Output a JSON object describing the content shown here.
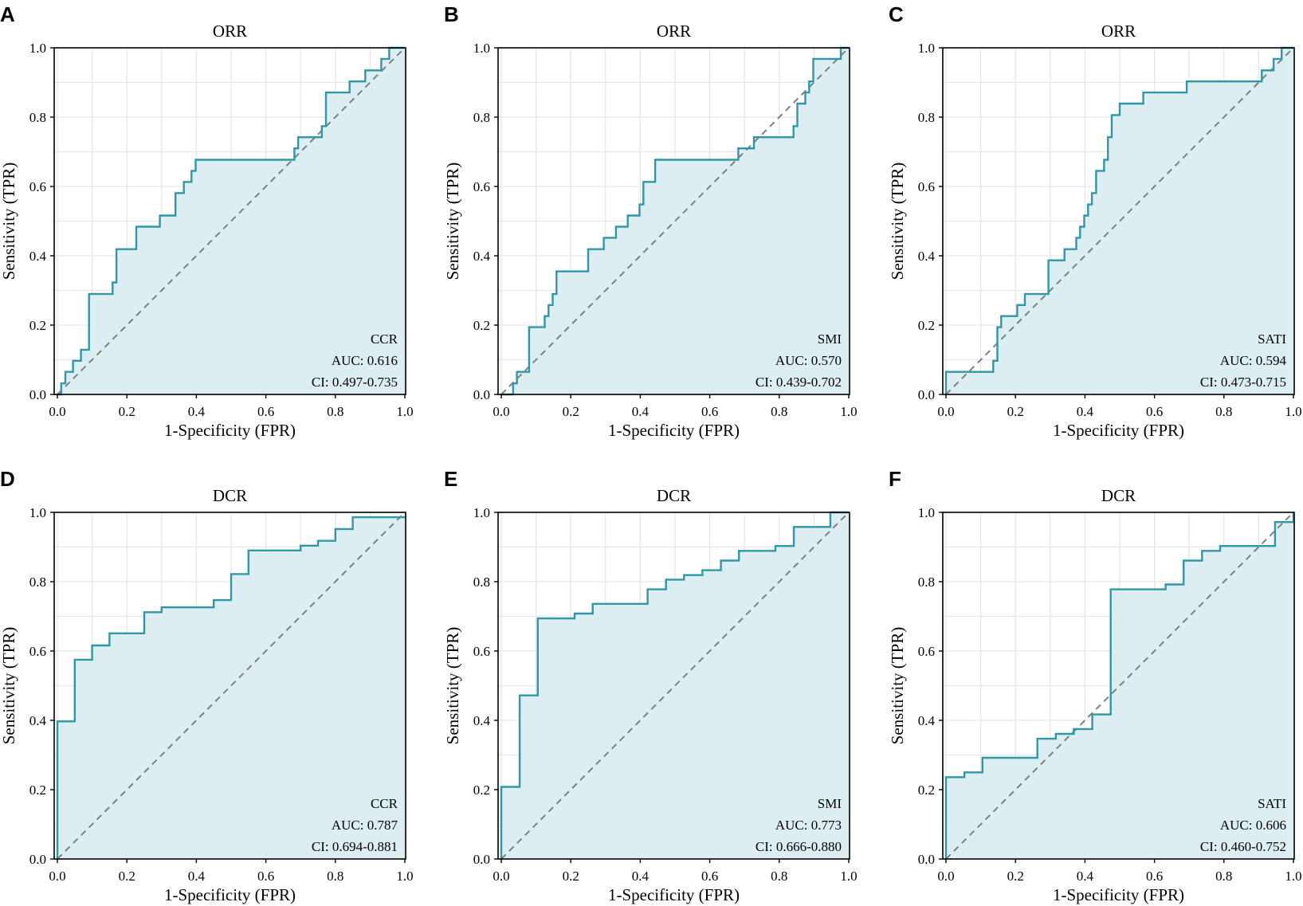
{
  "figure": {
    "colors": {
      "line": "#2E98A8",
      "fill": "#DCEEF1",
      "diagonal": "#7F7F7F"
    }
  },
  "chart_data": [
    {
      "type": "line",
      "panel": "A",
      "title": "ORR",
      "xlabel": "1-Specificity (FPR)",
      "ylabel": "Sensitivity (TPR)",
      "xlim": [
        0,
        1
      ],
      "ylim": [
        0,
        1
      ],
      "xticks": [
        "0.0",
        "0.2",
        "0.4",
        "0.6",
        "0.8",
        "1.0"
      ],
      "yticks": [
        "0.0",
        "0.2",
        "0.4",
        "0.6",
        "0.8",
        "1.0"
      ],
      "series_name": "CCR",
      "auc": "AUC: 0.616",
      "ci": "CI: 0.497-0.735",
      "x": [
        0,
        0.011,
        0.011,
        0.023,
        0.023,
        0.045,
        0.045,
        0.068,
        0.068,
        0.091,
        0.091,
        0.159,
        0.159,
        0.17,
        0.17,
        0.227,
        0.227,
        0.295,
        0.295,
        0.34,
        0.34,
        0.364,
        0.364,
        0.386,
        0.386,
        0.398,
        0.398,
        0.682,
        0.682,
        0.693,
        0.693,
        0.761,
        0.761,
        0.773,
        0.773,
        0.841,
        0.841,
        0.886,
        0.886,
        0.932,
        0.932,
        0.955,
        0.955,
        1.0,
        1.0
      ],
      "y": [
        0,
        0,
        0.032,
        0.032,
        0.065,
        0.065,
        0.097,
        0.097,
        0.129,
        0.129,
        0.29,
        0.29,
        0.323,
        0.323,
        0.419,
        0.419,
        0.484,
        0.484,
        0.516,
        0.516,
        0.581,
        0.581,
        0.613,
        0.613,
        0.645,
        0.645,
        0.677,
        0.677,
        0.71,
        0.71,
        0.742,
        0.742,
        0.774,
        0.774,
        0.871,
        0.871,
        0.903,
        0.903,
        0.935,
        0.935,
        0.968,
        0.968,
        1.0,
        1.0,
        1.0
      ]
    },
    {
      "type": "line",
      "panel": "B",
      "title": "ORR",
      "xlabel": "1-Specificity (FPR)",
      "ylabel": "Sensitivity (TPR)",
      "xlim": [
        0,
        1
      ],
      "ylim": [
        0,
        1
      ],
      "xticks": [
        "0.0",
        "0.2",
        "0.4",
        "0.6",
        "0.8",
        "1.0"
      ],
      "yticks": [
        "0.0",
        "0.2",
        "0.4",
        "0.6",
        "0.8",
        "1.0"
      ],
      "series_name": "SMI",
      "auc": "AUC: 0.570",
      "ci": "CI: 0.439-0.702",
      "x": [
        0,
        0.034,
        0.034,
        0.045,
        0.045,
        0.08,
        0.08,
        0.125,
        0.125,
        0.136,
        0.136,
        0.148,
        0.148,
        0.159,
        0.159,
        0.25,
        0.25,
        0.295,
        0.295,
        0.33,
        0.33,
        0.364,
        0.364,
        0.398,
        0.398,
        0.409,
        0.409,
        0.443,
        0.443,
        0.682,
        0.682,
        0.727,
        0.727,
        0.83,
        0.83,
        0.841,
        0.841,
        0.852,
        0.852,
        0.875,
        0.875,
        0.886,
        0.886,
        0.898,
        0.898,
        0.977,
        0.977,
        1.0,
        1.0
      ],
      "y": [
        0,
        0,
        0.032,
        0.032,
        0.065,
        0.065,
        0.194,
        0.194,
        0.226,
        0.226,
        0.258,
        0.258,
        0.29,
        0.29,
        0.355,
        0.355,
        0.419,
        0.419,
        0.452,
        0.452,
        0.484,
        0.484,
        0.516,
        0.516,
        0.548,
        0.548,
        0.613,
        0.613,
        0.677,
        0.677,
        0.71,
        0.71,
        0.742,
        0.742,
        0.742,
        0.742,
        0.774,
        0.774,
        0.839,
        0.839,
        0.871,
        0.871,
        0.903,
        0.903,
        0.968,
        0.968,
        1.0,
        1.0,
        1.0
      ]
    },
    {
      "type": "line",
      "panel": "C",
      "title": "ORR",
      "xlabel": "1-Specificity (FPR)",
      "ylabel": "Sensitivity (TPR)",
      "xlim": [
        0,
        1
      ],
      "ylim": [
        0,
        1
      ],
      "xticks": [
        "0.0",
        "0.2",
        "0.4",
        "0.6",
        "0.8",
        "1.0"
      ],
      "yticks": [
        "0.0",
        "0.2",
        "0.4",
        "0.6",
        "0.8",
        "1.0"
      ],
      "series_name": "SATI",
      "auc": "AUC: 0.594",
      "ci": "CI: 0.473-0.715",
      "x": [
        0,
        0.0,
        0.136,
        0.136,
        0.148,
        0.148,
        0.159,
        0.159,
        0.205,
        0.205,
        0.227,
        0.227,
        0.295,
        0.295,
        0.341,
        0.341,
        0.375,
        0.375,
        0.386,
        0.386,
        0.398,
        0.398,
        0.409,
        0.409,
        0.42,
        0.42,
        0.432,
        0.432,
        0.455,
        0.455,
        0.466,
        0.466,
        0.477,
        0.477,
        0.5,
        0.5,
        0.568,
        0.568,
        0.693,
        0.693,
        0.75,
        0.75,
        0.909,
        0.909,
        0.943,
        0.943,
        0.966,
        0.966,
        1.0,
        1.0
      ],
      "y": [
        0,
        0.065,
        0.065,
        0.097,
        0.097,
        0.194,
        0.194,
        0.226,
        0.226,
        0.258,
        0.258,
        0.29,
        0.29,
        0.387,
        0.387,
        0.419,
        0.419,
        0.452,
        0.452,
        0.484,
        0.484,
        0.516,
        0.516,
        0.548,
        0.548,
        0.581,
        0.581,
        0.645,
        0.645,
        0.677,
        0.677,
        0.742,
        0.742,
        0.806,
        0.806,
        0.839,
        0.839,
        0.871,
        0.871,
        0.903,
        0.903,
        0.903,
        0.903,
        0.935,
        0.935,
        0.968,
        0.968,
        1.0,
        1.0,
        1.0
      ]
    },
    {
      "type": "line",
      "panel": "D",
      "title": "DCR",
      "xlabel": "1-Specificity (FPR)",
      "ylabel": "Sensitivity (TPR)",
      "xlim": [
        0,
        1
      ],
      "ylim": [
        0,
        1
      ],
      "xticks": [
        "0.0",
        "0.2",
        "0.4",
        "0.6",
        "0.8",
        "1.0"
      ],
      "yticks": [
        "0.0",
        "0.2",
        "0.4",
        "0.6",
        "0.8",
        "1.0"
      ],
      "series_name": "CCR",
      "auc": "AUC: 0.787",
      "ci": "CI: 0.694-0.881",
      "x": [
        0,
        0.0,
        0.05,
        0.05,
        0.1,
        0.1,
        0.15,
        0.15,
        0.25,
        0.25,
        0.3,
        0.3,
        0.45,
        0.45,
        0.5,
        0.5,
        0.55,
        0.55,
        0.7,
        0.7,
        0.75,
        0.75,
        0.8,
        0.8,
        0.85,
        0.85,
        1.0
      ],
      "y": [
        0,
        0.397,
        0.397,
        0.575,
        0.575,
        0.616,
        0.616,
        0.651,
        0.651,
        0.712,
        0.712,
        0.726,
        0.726,
        0.747,
        0.747,
        0.822,
        0.822,
        0.89,
        0.89,
        0.904,
        0.904,
        0.918,
        0.918,
        0.952,
        0.952,
        0.986,
        0.986
      ]
    },
    {
      "type": "line",
      "panel": "E",
      "title": "DCR",
      "xlabel": "1-Specificity (FPR)",
      "ylabel": "Sensitivity (TPR)",
      "xlim": [
        0,
        1
      ],
      "ylim": [
        0,
        1
      ],
      "xticks": [
        "0.0",
        "0.2",
        "0.4",
        "0.6",
        "0.8",
        "1.0"
      ],
      "yticks": [
        "0.0",
        "0.2",
        "0.4",
        "0.6",
        "0.8",
        "1.0"
      ],
      "series_name": "SMI",
      "auc": "AUC: 0.773",
      "ci": "CI: 0.666-0.880",
      "x": [
        0,
        0.0,
        0.053,
        0.053,
        0.105,
        0.105,
        0.211,
        0.211,
        0.263,
        0.263,
        0.421,
        0.421,
        0.474,
        0.474,
        0.526,
        0.526,
        0.579,
        0.579,
        0.632,
        0.632,
        0.684,
        0.684,
        0.789,
        0.789,
        0.842,
        0.842,
        0.947,
        0.947,
        1.0
      ],
      "y": [
        0,
        0.208,
        0.208,
        0.472,
        0.472,
        0.694,
        0.694,
        0.708,
        0.708,
        0.736,
        0.736,
        0.778,
        0.778,
        0.806,
        0.806,
        0.819,
        0.819,
        0.833,
        0.833,
        0.861,
        0.861,
        0.889,
        0.889,
        0.903,
        0.903,
        0.958,
        0.958,
        1.0,
        1.0
      ]
    },
    {
      "type": "line",
      "panel": "F",
      "title": "DCR",
      "xlabel": "1-Specificity (FPR)",
      "ylabel": "Sensitivity (TPR)",
      "xlim": [
        0,
        1
      ],
      "ylim": [
        0,
        1
      ],
      "xticks": [
        "0.0",
        "0.2",
        "0.4",
        "0.6",
        "0.8",
        "1.0"
      ],
      "yticks": [
        "0.0",
        "0.2",
        "0.4",
        "0.6",
        "0.8",
        "1.0"
      ],
      "series_name": "SATI",
      "auc": "AUC: 0.606",
      "ci": "CI: 0.460-0.752",
      "x": [
        0,
        0.0,
        0.053,
        0.053,
        0.105,
        0.105,
        0.263,
        0.263,
        0.316,
        0.316,
        0.368,
        0.368,
        0.421,
        0.421,
        0.474,
        0.474,
        0.632,
        0.632,
        0.684,
        0.684,
        0.737,
        0.737,
        0.789,
        0.789,
        0.947,
        0.947,
        1.0,
        1.0
      ],
      "y": [
        0,
        0.236,
        0.236,
        0.25,
        0.25,
        0.292,
        0.292,
        0.347,
        0.347,
        0.361,
        0.361,
        0.375,
        0.375,
        0.417,
        0.417,
        0.778,
        0.778,
        0.792,
        0.792,
        0.861,
        0.861,
        0.889,
        0.889,
        0.903,
        0.903,
        0.972,
        0.972,
        1.0
      ]
    }
  ]
}
